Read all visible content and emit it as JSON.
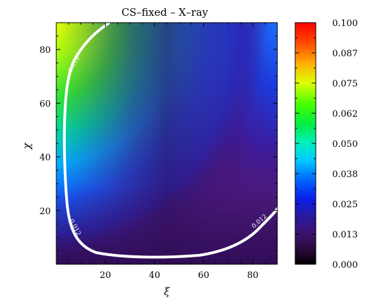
{
  "chart_data": {
    "type": "heatmap",
    "title": "CS–fixed – X–ray",
    "xlabel": "ξ",
    "ylabel": "χ",
    "xlim": [
      0,
      90
    ],
    "ylim": [
      0,
      90
    ],
    "x_ticks": [
      "20",
      "40",
      "60",
      "80"
    ],
    "x_tick_values": [
      20,
      40,
      60,
      80
    ],
    "y_ticks": [
      "20",
      "40",
      "60",
      "80"
    ],
    "y_tick_values": [
      20,
      40,
      60,
      80
    ],
    "colorbar": {
      "min": 0.0,
      "max": 0.1,
      "colormap": "rainbow",
      "tick_labels": [
        "0.000",
        "0.013",
        "0.025",
        "0.038",
        "0.050",
        "0.062",
        "0.075",
        "0.087",
        "0.100"
      ],
      "tick_values": [
        0.0,
        0.0125,
        0.025,
        0.0375,
        0.05,
        0.0625,
        0.075,
        0.0875,
        0.1
      ]
    },
    "contour": {
      "level": 0.012,
      "labels": [
        "0.012",
        "0.012",
        "0.012"
      ],
      "color": "#ffffff"
    },
    "regions": [
      {
        "description": "high-value corner",
        "xi": [
          0,
          25
        ],
        "chi": [
          55,
          90
        ],
        "value_range": [
          0.06,
          0.08
        ]
      },
      {
        "description": "low-value floor",
        "xi": [
          10,
          90
        ],
        "chi": [
          0,
          15
        ],
        "value_range": [
          0.002,
          0.012
        ]
      }
    ],
    "grid": false
  }
}
